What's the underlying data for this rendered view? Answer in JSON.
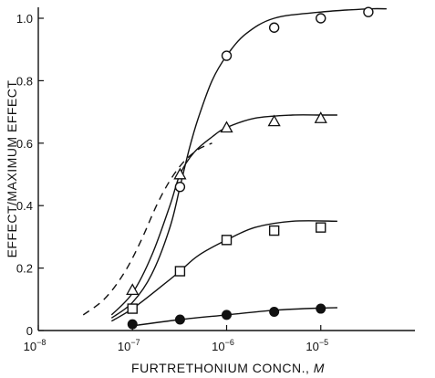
{
  "chart_data": {
    "type": "scatter",
    "title": "",
    "xlabel": "FURTRETHONIUM CONCN., ",
    "xlabel_unit": "M",
    "ylabel": "EFFECT/MAXIMUM EFFECT",
    "x_scale": "log",
    "xlim": [
      1e-08,
      0.0001
    ],
    "ylim": [
      0,
      1.0
    ],
    "grid": false,
    "legend": "none",
    "y_ticks": [
      {
        "value": 0,
        "label": "0"
      },
      {
        "value": 0.2,
        "label": "0.2"
      },
      {
        "value": 0.4,
        "label": "0.4"
      },
      {
        "value": 0.6,
        "label": "0.6"
      },
      {
        "value": 0.8,
        "label": "0.8"
      },
      {
        "value": 1.0,
        "label": "1.0"
      }
    ],
    "x_ticks": [
      {
        "value": 1e-08,
        "base": "10",
        "exp": "−8"
      },
      {
        "value": 1e-07,
        "base": "10",
        "exp": "−7"
      },
      {
        "value": 1e-06,
        "base": "10",
        "exp": "−6"
      },
      {
        "value": 1e-05,
        "base": "10",
        "exp": "−5"
      }
    ],
    "series": [
      {
        "marker": "open-circle",
        "points": [
          {
            "x": 3.2e-07,
            "y": 0.46
          },
          {
            "x": 1e-06,
            "y": 0.88
          },
          {
            "x": 3.2e-06,
            "y": 0.97
          },
          {
            "x": 1e-05,
            "y": 1.0
          },
          {
            "x": 3.2e-05,
            "y": 1.02
          }
        ],
        "curve": [
          {
            "x": 6e-08,
            "y": 0.04
          },
          {
            "x": 1e-07,
            "y": 0.09
          },
          {
            "x": 1.6e-07,
            "y": 0.18
          },
          {
            "x": 2.5e-07,
            "y": 0.33
          },
          {
            "x": 3.2e-07,
            "y": 0.46
          },
          {
            "x": 4e-07,
            "y": 0.58
          },
          {
            "x": 5e-07,
            "y": 0.68
          },
          {
            "x": 7e-07,
            "y": 0.8
          },
          {
            "x": 1e-06,
            "y": 0.88
          },
          {
            "x": 1.6e-06,
            "y": 0.95
          },
          {
            "x": 3.2e-06,
            "y": 1.0
          },
          {
            "x": 1e-05,
            "y": 1.02
          },
          {
            "x": 3.2e-05,
            "y": 1.03
          },
          {
            "x": 5e-05,
            "y": 1.03
          }
        ]
      },
      {
        "marker": "open-triangle",
        "points": [
          {
            "x": 1e-07,
            "y": 0.13
          },
          {
            "x": 3.2e-07,
            "y": 0.5
          },
          {
            "x": 1e-06,
            "y": 0.65
          },
          {
            "x": 3.2e-06,
            "y": 0.67
          },
          {
            "x": 1e-05,
            "y": 0.68
          }
        ],
        "curve": [
          {
            "x": 6e-08,
            "y": 0.05
          },
          {
            "x": 1e-07,
            "y": 0.12
          },
          {
            "x": 1.6e-07,
            "y": 0.24
          },
          {
            "x": 2.5e-07,
            "y": 0.4
          },
          {
            "x": 3.2e-07,
            "y": 0.5
          },
          {
            "x": 4.5e-07,
            "y": 0.57
          },
          {
            "x": 7e-07,
            "y": 0.62
          },
          {
            "x": 1e-06,
            "y": 0.65
          },
          {
            "x": 2e-06,
            "y": 0.68
          },
          {
            "x": 5e-06,
            "y": 0.69
          },
          {
            "x": 1e-05,
            "y": 0.69
          },
          {
            "x": 1.5e-05,
            "y": 0.69
          }
        ]
      },
      {
        "marker": "open-square",
        "points": [
          {
            "x": 1e-07,
            "y": 0.07
          },
          {
            "x": 3.2e-07,
            "y": 0.19
          },
          {
            "x": 1e-06,
            "y": 0.29
          },
          {
            "x": 3.2e-06,
            "y": 0.32
          },
          {
            "x": 1e-05,
            "y": 0.33
          }
        ],
        "curve": [
          {
            "x": 6e-08,
            "y": 0.03
          },
          {
            "x": 1e-07,
            "y": 0.07
          },
          {
            "x": 2e-07,
            "y": 0.14
          },
          {
            "x": 3.2e-07,
            "y": 0.19
          },
          {
            "x": 5e-07,
            "y": 0.24
          },
          {
            "x": 1e-06,
            "y": 0.29
          },
          {
            "x": 2e-06,
            "y": 0.33
          },
          {
            "x": 5e-06,
            "y": 0.35
          },
          {
            "x": 1.5e-05,
            "y": 0.35
          }
        ]
      },
      {
        "marker": "filled-circle",
        "points": [
          {
            "x": 1e-07,
            "y": 0.02
          },
          {
            "x": 3.2e-07,
            "y": 0.035
          },
          {
            "x": 1e-06,
            "y": 0.05
          },
          {
            "x": 3.2e-06,
            "y": 0.06
          },
          {
            "x": 1e-05,
            "y": 0.07
          }
        ],
        "curve": [
          {
            "x": 1e-07,
            "y": 0.015
          },
          {
            "x": 3.2e-07,
            "y": 0.035
          },
          {
            "x": 1e-06,
            "y": 0.05
          },
          {
            "x": 3.2e-06,
            "y": 0.065
          },
          {
            "x": 1e-05,
            "y": 0.072
          },
          {
            "x": 1.5e-05,
            "y": 0.073
          }
        ]
      },
      {
        "style": "dashed",
        "curve": [
          {
            "x": 3e-08,
            "y": 0.05
          },
          {
            "x": 5e-08,
            "y": 0.1
          },
          {
            "x": 8e-08,
            "y": 0.18
          },
          {
            "x": 1.2e-07,
            "y": 0.28
          },
          {
            "x": 1.8e-07,
            "y": 0.4
          },
          {
            "x": 2.5e-07,
            "y": 0.48
          },
          {
            "x": 3.5e-07,
            "y": 0.54
          },
          {
            "x": 5e-07,
            "y": 0.58
          },
          {
            "x": 7e-07,
            "y": 0.6
          }
        ]
      }
    ]
  }
}
